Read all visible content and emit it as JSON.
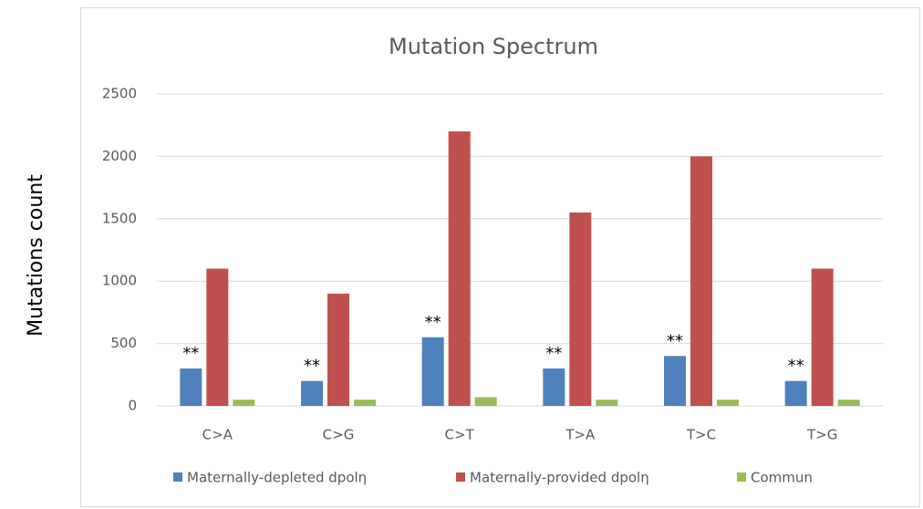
{
  "chart_data": {
    "type": "bar",
    "title": "Mutation Spectrum",
    "y_label": "Mutations count",
    "categories": [
      "C>A",
      "C>G",
      "C>T",
      "T>A",
      "T>C",
      "T>G"
    ],
    "series": [
      {
        "name": "Maternally-depleted dpolη",
        "color": "#4f81bd",
        "values": [
          300,
          200,
          550,
          300,
          400,
          200
        ]
      },
      {
        "name": "Maternally-provided dpolη",
        "color": "#c0504d",
        "values": [
          1100,
          900,
          2200,
          1550,
          2000,
          1100
        ]
      },
      {
        "name": "Commun",
        "color": "#9bbb59",
        "values": [
          50,
          50,
          70,
          50,
          50,
          50
        ]
      }
    ],
    "annotations": [
      "**",
      "**",
      "**",
      "**",
      "**",
      "**"
    ],
    "ylim": [
      0,
      2500
    ],
    "yticks": [
      0,
      500,
      1000,
      1500,
      2000,
      2500
    ],
    "grid": true,
    "legend": "bottom"
  }
}
